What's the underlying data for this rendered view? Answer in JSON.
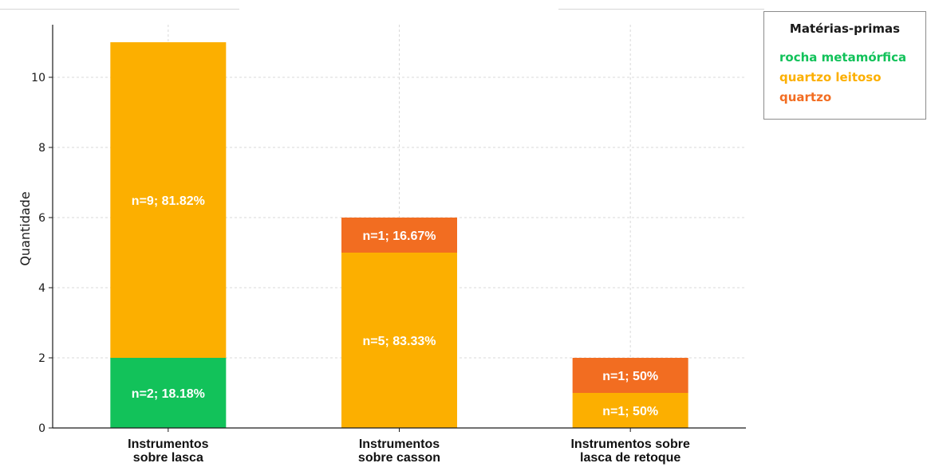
{
  "colors": {
    "rocha_metamorfica": "#12c25a",
    "quartzo_leitoso": "#fcaf00",
    "quartzo": "#f26d21",
    "grid": "#d9d9d9",
    "axis": "#1a1a1a"
  },
  "legend": {
    "title": "Matérias-primas",
    "items": [
      {
        "label": "rocha metamórfica",
        "color": "#12c25a"
      },
      {
        "label": "quartzo leitoso",
        "color": "#fcaf00"
      },
      {
        "label": "quartzo",
        "color": "#f26d21"
      }
    ]
  },
  "chart_data": {
    "type": "bar",
    "stacked": true,
    "categories": [
      [
        "Instrumentos",
        "sobre lasca"
      ],
      [
        "Instrumentos",
        "sobre casson"
      ],
      [
        "Instrumentos sobre",
        "lasca de retoque"
      ]
    ],
    "series": [
      {
        "name": "rocha metamórfica",
        "color": "#12c25a",
        "values": [
          2,
          0,
          0
        ],
        "labels": [
          "n=2; 18.18%",
          "",
          ""
        ]
      },
      {
        "name": "quartzo leitoso",
        "color": "#fcaf00",
        "values": [
          9,
          5,
          1
        ],
        "labels": [
          "n=9; 81.82%",
          "n=5; 83.33%",
          "n=1; 50%"
        ]
      },
      {
        "name": "quartzo",
        "color": "#f26d21",
        "values": [
          0,
          1,
          1
        ],
        "labels": [
          "",
          "n=1; 16.67%",
          "n=1; 50%"
        ]
      }
    ],
    "xlabel": "",
    "ylabel": "Quantidade",
    "ylim": [
      0,
      11.5
    ],
    "yticks": [
      0,
      2,
      4,
      6,
      8,
      10
    ],
    "grid": true,
    "legend_position": "top-right"
  }
}
